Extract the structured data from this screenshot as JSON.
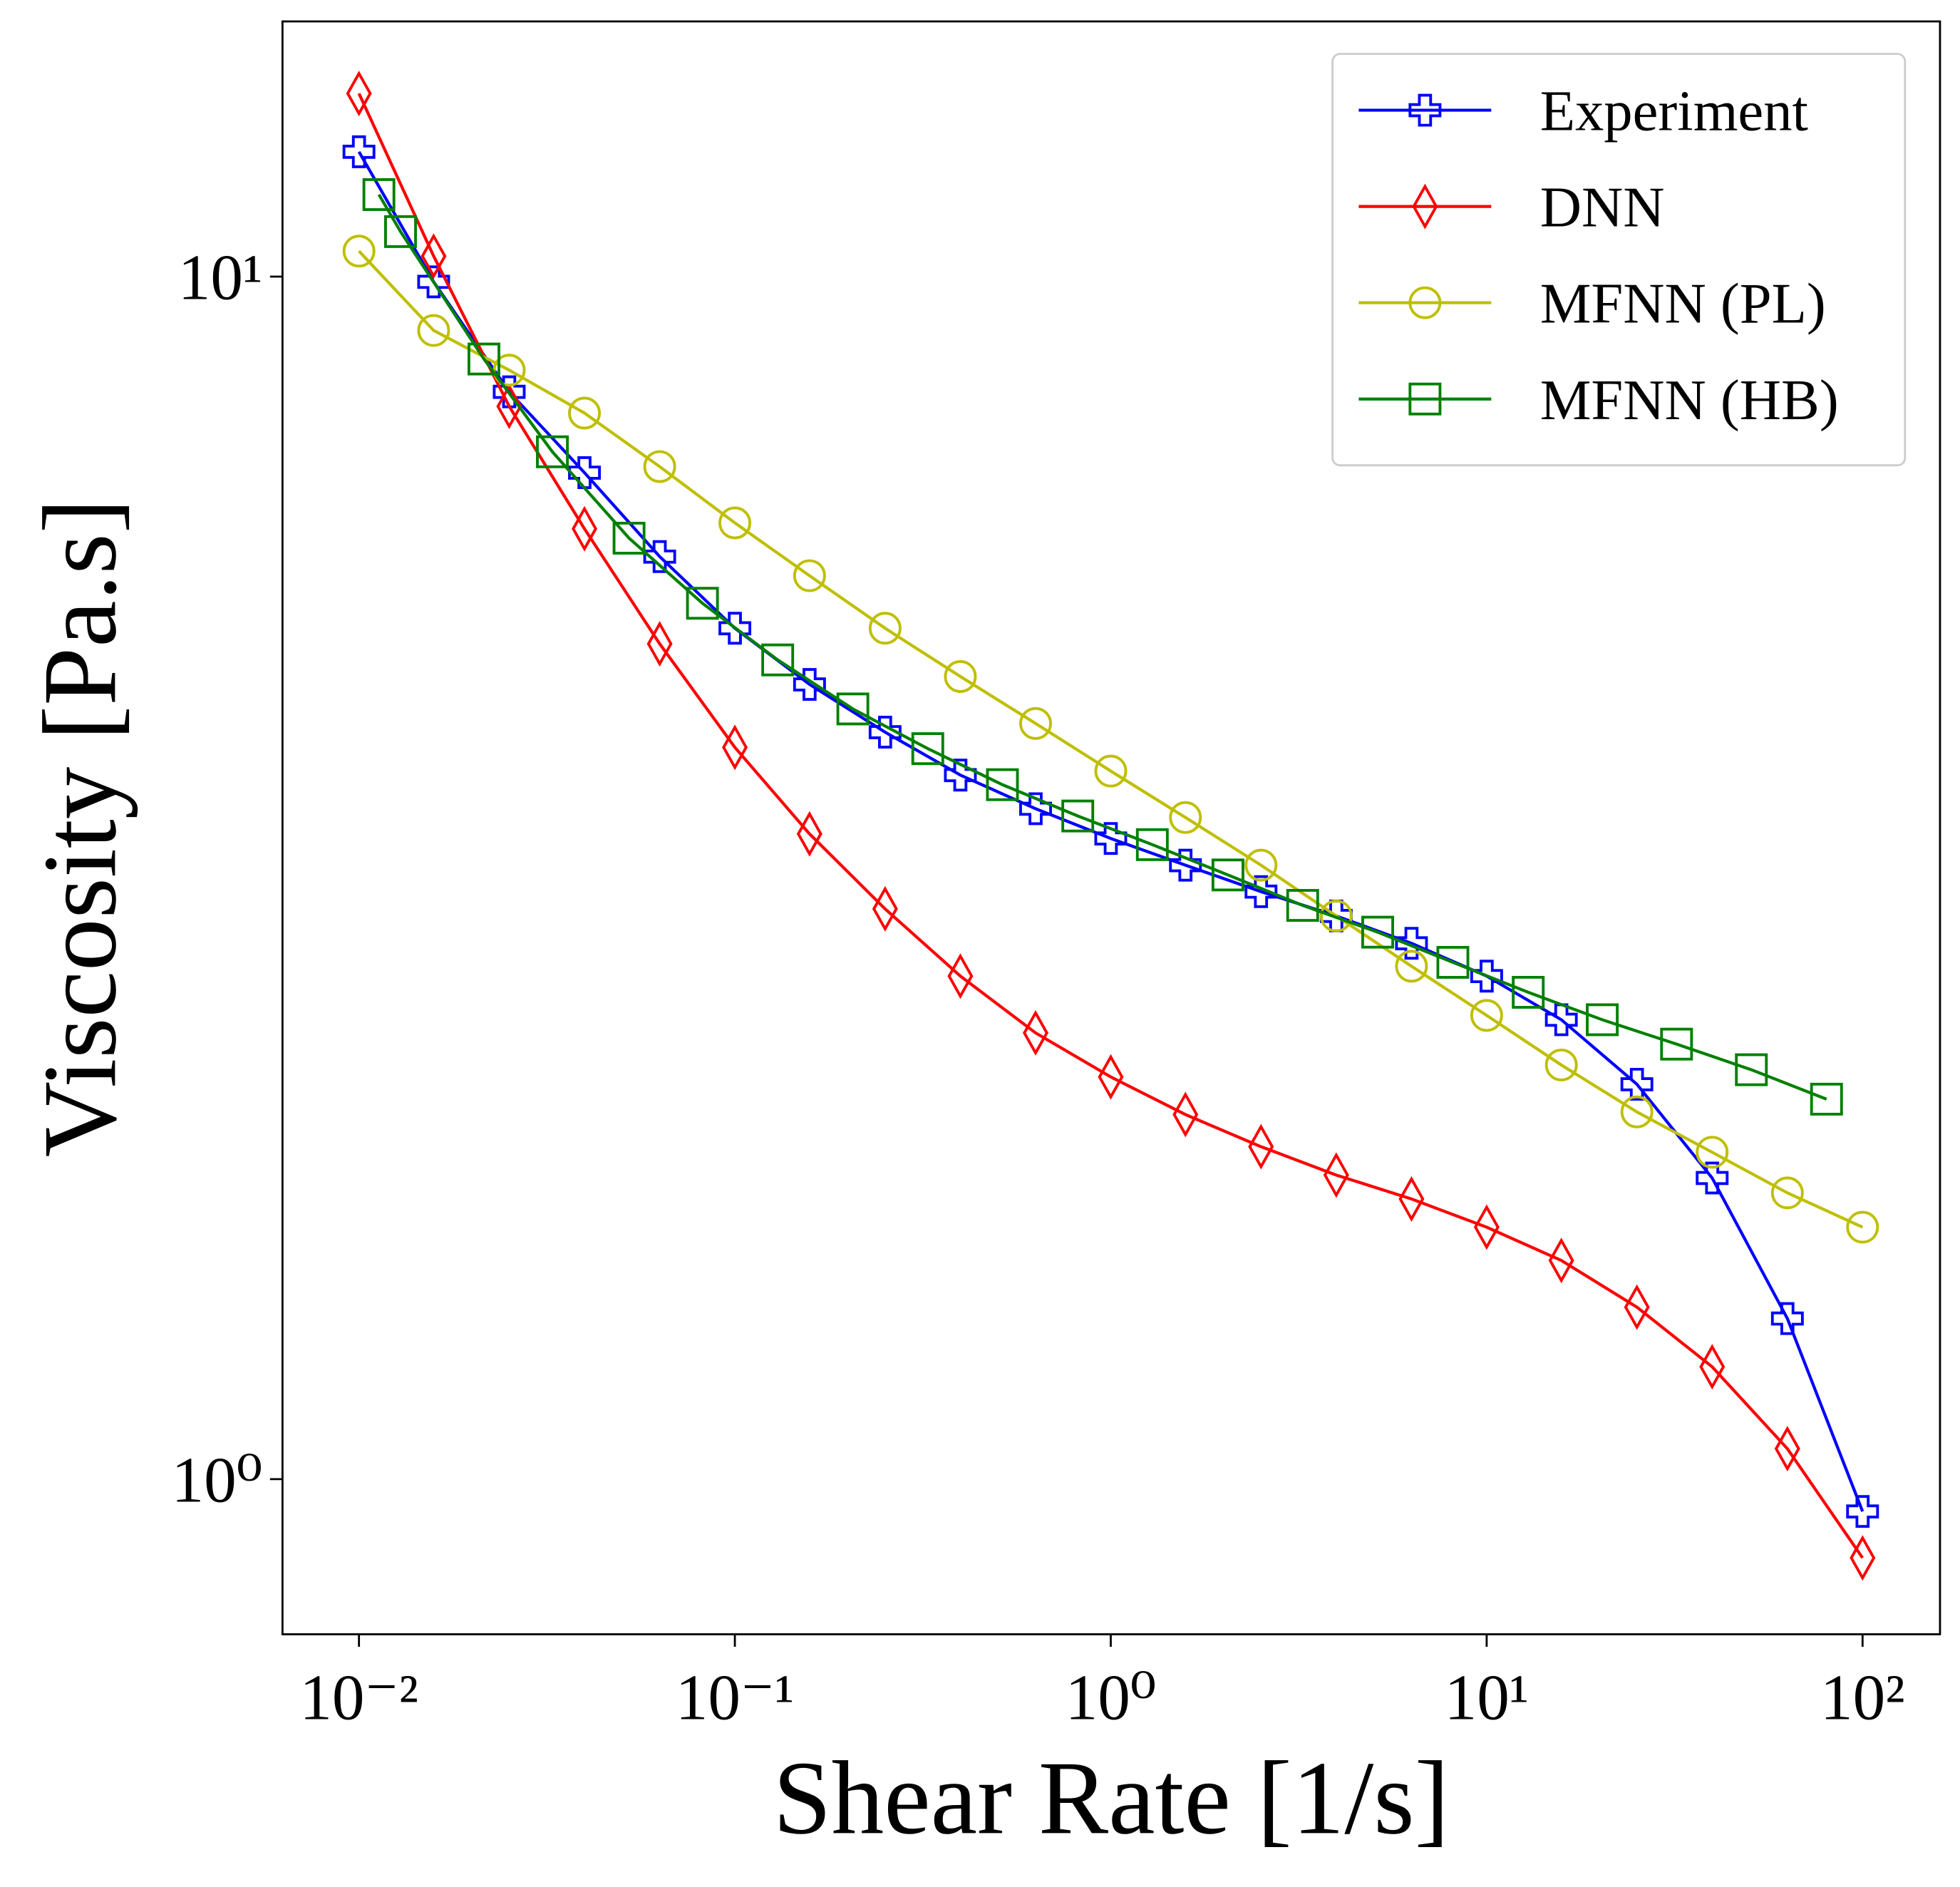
{
  "chart_data": {
    "type": "line",
    "xlabel": "Shear Rate [1/s]",
    "ylabel": "Viscosity [Pa.s]",
    "xscale": "log",
    "yscale": "log",
    "xlim": [
      0.00626,
      160.7
    ],
    "ylim": [
      0.743,
      16.3
    ],
    "xticks": [
      {
        "value": 0.01,
        "label": "10⁻²"
      },
      {
        "value": 0.1,
        "label": "10⁻¹"
      },
      {
        "value": 1,
        "label": "10⁰"
      },
      {
        "value": 10,
        "label": "10¹"
      },
      {
        "value": 100,
        "label": "10²"
      }
    ],
    "yticks": [
      {
        "value": 1,
        "label": "10⁰"
      },
      {
        "value": 10,
        "label": "10¹"
      }
    ],
    "legend": "upper right",
    "series": [
      {
        "name": "Experiment",
        "color": "#0000ff",
        "marker": "plus",
        "x": [
          0.01,
          0.0158,
          0.0251,
          0.0398,
          0.0631,
          0.1,
          0.158,
          0.251,
          0.398,
          0.631,
          1,
          1.58,
          2.51,
          3.98,
          6.31,
          10,
          15.8,
          25.1,
          39.8,
          63.1,
          100
        ],
        "values": [
          12.7,
          9.9,
          8.02,
          6.87,
          5.85,
          5.1,
          4.58,
          4.18,
          3.85,
          3.61,
          3.41,
          3.24,
          3.08,
          2.94,
          2.79,
          2.62,
          2.41,
          2.13,
          1.78,
          1.36,
          0.94
        ]
      },
      {
        "name": "DNN",
        "color": "#ff0000",
        "marker": "diamond",
        "x": [
          0.01,
          0.0158,
          0.0251,
          0.0398,
          0.0631,
          0.1,
          0.158,
          0.251,
          0.398,
          0.631,
          1,
          1.58,
          2.51,
          3.98,
          6.31,
          10,
          15.8,
          25.1,
          39.8,
          63.1,
          100
        ],
        "values": [
          14.2,
          10.4,
          7.8,
          6.17,
          4.95,
          4.06,
          3.44,
          2.98,
          2.62,
          2.35,
          2.16,
          2.01,
          1.89,
          1.79,
          1.71,
          1.62,
          1.52,
          1.39,
          1.24,
          1.06,
          0.86
        ]
      },
      {
        "name": "MFNN (PL)",
        "color": "#bfbf00",
        "marker": "circle",
        "x": [
          0.01,
          0.0158,
          0.0251,
          0.0398,
          0.0631,
          0.1,
          0.158,
          0.251,
          0.398,
          0.631,
          1,
          1.58,
          2.51,
          3.98,
          6.31,
          10,
          15.8,
          25.1,
          39.8,
          63.1,
          100
        ],
        "values": [
          10.5,
          9.02,
          8.36,
          7.7,
          6.95,
          6.24,
          5.64,
          5.1,
          4.65,
          4.25,
          3.88,
          3.55,
          3.24,
          2.94,
          2.67,
          2.43,
          2.21,
          2.02,
          1.87,
          1.73,
          1.62
        ]
      },
      {
        "name": "MFNN (HB)",
        "color": "#008000",
        "marker": "square",
        "x": [
          0.0113,
          0.0129,
          0.0215,
          0.0327,
          0.0523,
          0.082,
          0.13,
          0.206,
          0.326,
          0.515,
          0.817,
          1.29,
          2.05,
          3.24,
          5.13,
          8.13,
          12.9,
          20.3,
          32.0,
          50.6,
          80.2
        ],
        "values": [
          11.7,
          10.9,
          8.54,
          7.15,
          6.06,
          5.35,
          4.8,
          4.37,
          4.05,
          3.78,
          3.56,
          3.37,
          3.18,
          3.0,
          2.85,
          2.69,
          2.54,
          2.41,
          2.3,
          2.19,
          2.07
        ]
      }
    ]
  }
}
